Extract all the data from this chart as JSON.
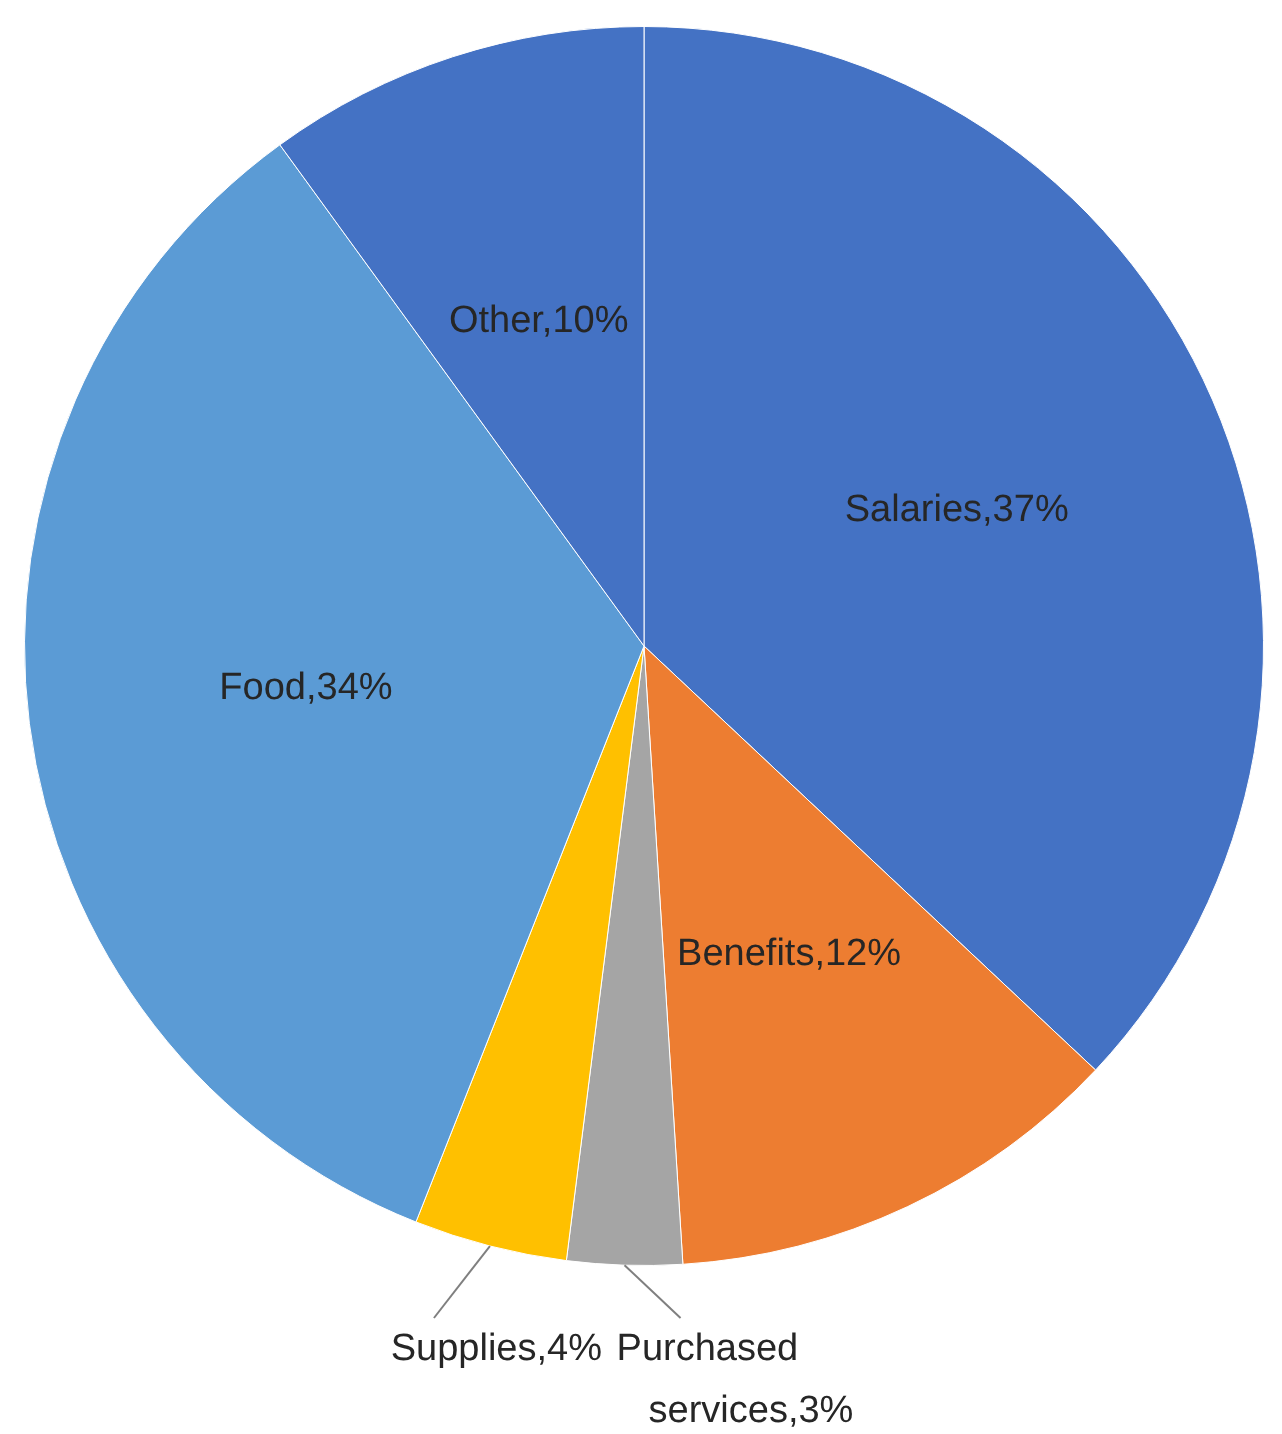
{
  "chart_data": {
    "type": "pie",
    "categories": [
      "Salaries",
      "Benefits",
      "Purchased services",
      "Supplies",
      "Food",
      "Other"
    ],
    "values": [
      37,
      12,
      3,
      4,
      34,
      10
    ],
    "value_labels": [
      "37%",
      "12%",
      "3%",
      "4%",
      "34%",
      "10%"
    ],
    "colors": [
      "#4472c4",
      "#ed7d31",
      "#a5a5a5",
      "#ffc000",
      "#5b9bd5",
      "#4472c4"
    ],
    "legend": false
  }
}
